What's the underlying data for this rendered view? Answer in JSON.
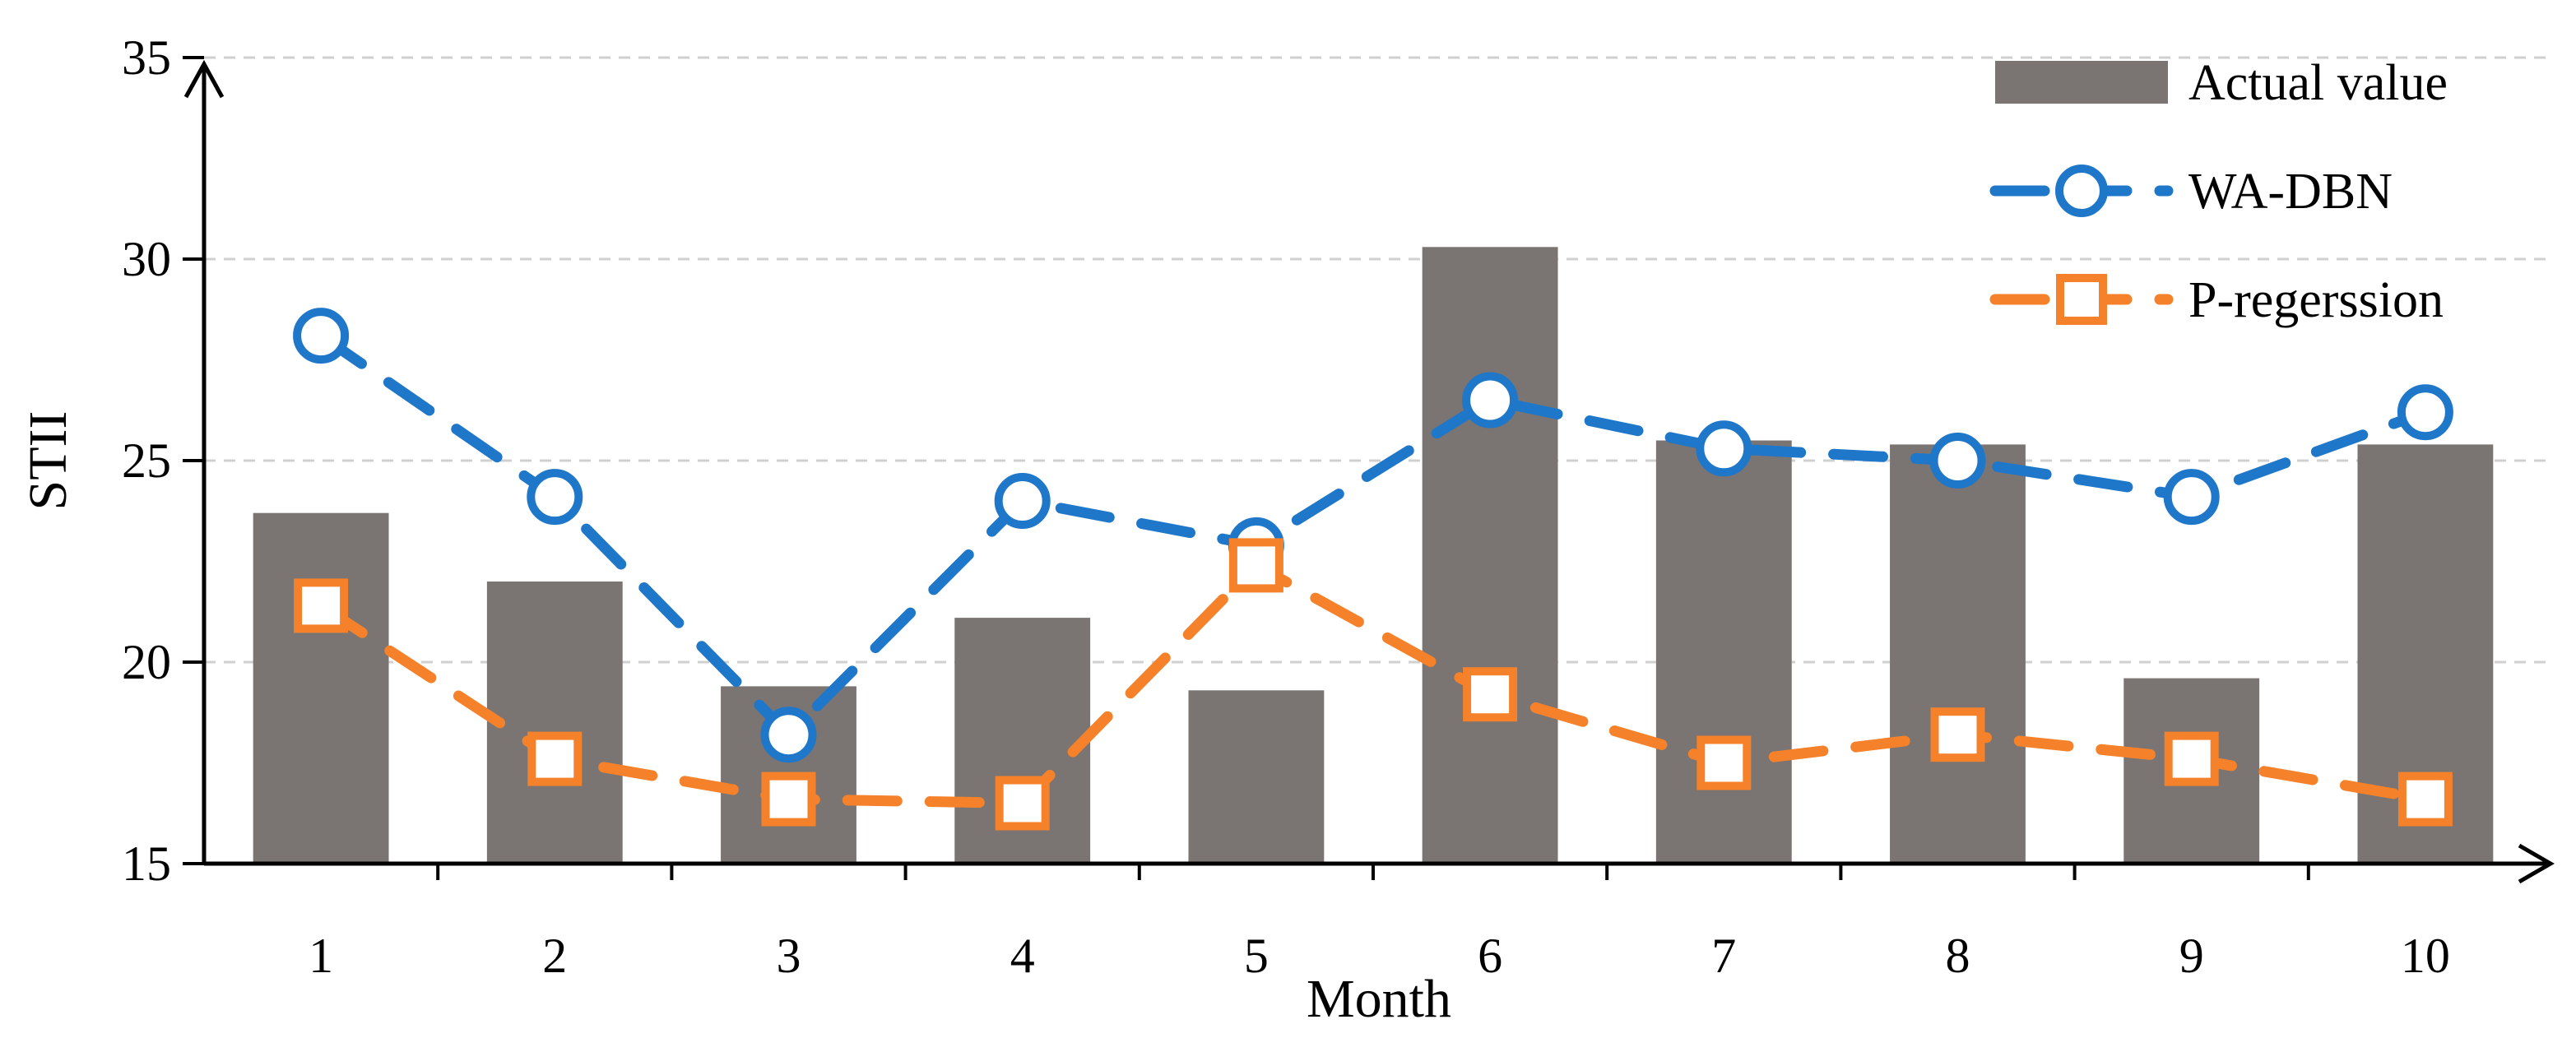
{
  "chart_data": {
    "type": "bar+line",
    "title": "",
    "xlabel": "Month",
    "ylabel": "STII",
    "ylim": [
      15,
      35
    ],
    "yticks": [
      15,
      20,
      25,
      30,
      35
    ],
    "grid": "horizontal dashed",
    "legend_position": "top-right",
    "categories": [
      "1",
      "2",
      "3",
      "4",
      "5",
      "6",
      "7",
      "8",
      "9",
      "10"
    ],
    "series": [
      {
        "name": "Actual value",
        "kind": "bar",
        "color": "#7a7473",
        "values": [
          23.7,
          22.0,
          19.4,
          21.1,
          19.3,
          30.3,
          25.5,
          25.4,
          19.6,
          25.4
        ]
      },
      {
        "name": "WA-DBN",
        "kind": "line",
        "marker": "circle",
        "color": "#1f77c9",
        "values": [
          28.1,
          24.1,
          18.2,
          24.0,
          22.9,
          26.5,
          25.3,
          25.0,
          24.1,
          26.2
        ]
      },
      {
        "name": "P-regerssion",
        "kind": "line",
        "marker": "square",
        "color": "#f5822a",
        "values": [
          21.4,
          17.6,
          16.6,
          16.5,
          22.4,
          19.2,
          17.5,
          18.2,
          17.6,
          16.6
        ]
      }
    ]
  }
}
